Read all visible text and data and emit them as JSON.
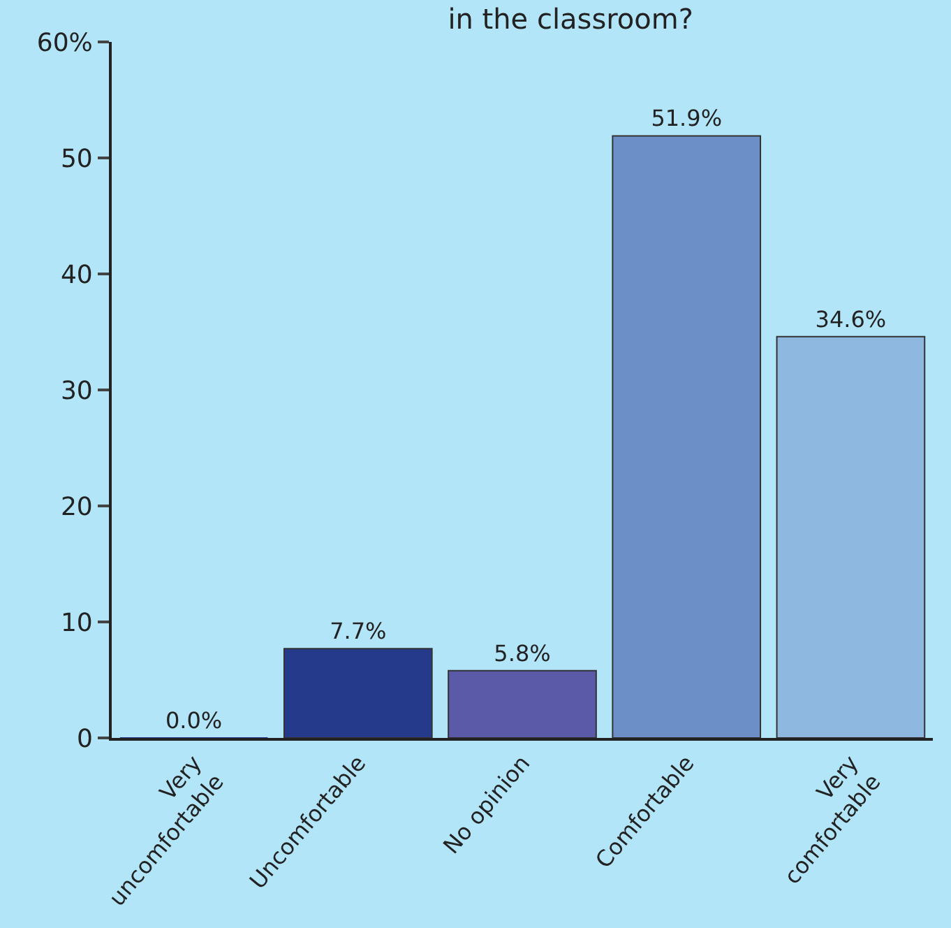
{
  "chart_data": {
    "type": "bar",
    "title": "in the classroom?",
    "categories": [
      "Very\nuncomfortable",
      "Uncomfortable",
      "No opinion",
      "Comfortable",
      "Very\ncomfortable"
    ],
    "values": [
      0.0,
      7.7,
      5.8,
      51.9,
      34.6
    ],
    "value_labels": [
      "0.0%",
      "7.7%",
      "5.8%",
      "51.9%",
      "34.6%"
    ],
    "colors": [
      "#263a8c",
      "#263a8c",
      "#5a5aa8",
      "#6b8fc6",
      "#8fb8e0"
    ],
    "ylim": [
      0,
      60
    ],
    "yticks": [
      0,
      10,
      20,
      30,
      40,
      50,
      {
        "value": 60,
        "label": "60%"
      }
    ],
    "grid": false,
    "legend": false
  }
}
